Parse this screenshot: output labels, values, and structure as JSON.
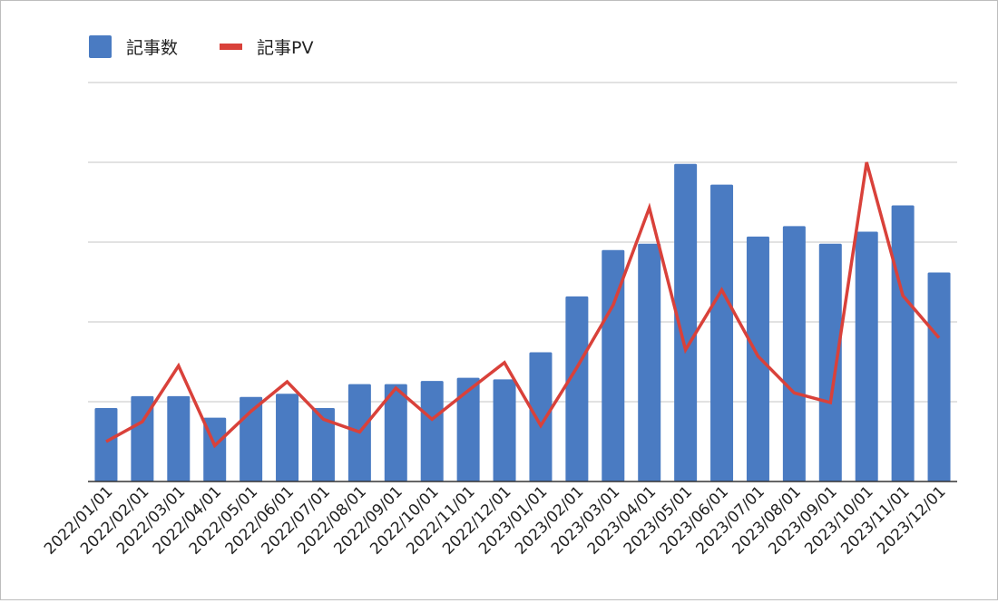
{
  "chart_data": {
    "type": "bar",
    "categories": [
      "2022/01/01",
      "2022/02/01",
      "2022/03/01",
      "2022/04/01",
      "2022/05/01",
      "2022/06/01",
      "2022/07/01",
      "2022/08/01",
      "2022/09/01",
      "2022/10/01",
      "2022/11/01",
      "2022/12/01",
      "2023/01/01",
      "2023/02/01",
      "2023/03/01",
      "2023/04/01",
      "2023/05/01",
      "2023/06/01",
      "2023/07/01",
      "2023/08/01",
      "2023/09/01",
      "2023/10/01",
      "2023/11/01",
      "2023/12/01"
    ],
    "series": [
      {
        "name": "記事数",
        "type": "bar",
        "color": "#4a7bc2",
        "values": [
          92,
          107,
          107,
          80,
          106,
          110,
          92,
          122,
          122,
          126,
          130,
          128,
          162,
          232,
          290,
          298,
          398,
          372,
          307,
          320,
          298,
          313,
          346,
          262
        ]
      },
      {
        "name": "記事PV",
        "type": "line",
        "color": "#d9413a",
        "values": [
          50,
          75,
          145,
          45,
          88,
          125,
          78,
          62,
          117,
          78,
          114,
          149,
          70,
          143,
          221,
          343,
          165,
          240,
          157,
          111,
          99,
          400,
          233,
          180
        ]
      }
    ],
    "ylim": [
      0,
      500
    ],
    "grid": true,
    "y_tick_labels_shown": false,
    "legend": "top-left",
    "xlabel": "",
    "ylabel": ""
  }
}
